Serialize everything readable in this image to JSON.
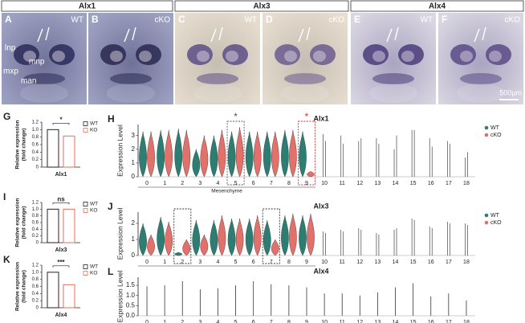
{
  "header": {
    "groups": [
      "Alx1",
      "Alx3",
      "Alx4"
    ]
  },
  "panels": [
    {
      "letter": "A",
      "genotype": "WT"
    },
    {
      "letter": "B",
      "genotype": "cKO"
    },
    {
      "letter": "C",
      "genotype": "WT"
    },
    {
      "letter": "D",
      "genotype": "cKO"
    },
    {
      "letter": "E",
      "genotype": "WT"
    },
    {
      "letter": "F",
      "genotype": "cKO"
    }
  ],
  "annotations": [
    "lnp",
    "mnp",
    "mxp",
    "man"
  ],
  "scale_bar": "500μm",
  "chart_data": [
    {
      "type": "bar",
      "letter": "G",
      "ylabel": [
        "Relative expression",
        "(fold change)"
      ],
      "categories": [
        "Alx1"
      ],
      "series": [
        {
          "name": "WT",
          "color": "#222222",
          "values": [
            1.0
          ]
        },
        {
          "name": "KO",
          "color": "#e0705a",
          "values": [
            0.83
          ]
        }
      ],
      "ylim": [
        0,
        1.2
      ],
      "yticks": [
        0,
        0.2,
        0.4,
        0.6,
        0.8,
        {
          "value": 1,
          "label": "1.0"
        },
        1.2
      ],
      "significance": "*"
    },
    {
      "type": "bar",
      "letter": "I",
      "ylabel": [
        "Relative expression",
        "(fold change)"
      ],
      "categories": [
        "Alx3"
      ],
      "series": [
        {
          "name": "WT",
          "color": "#222222",
          "values": [
            1.0
          ]
        },
        {
          "name": "KO",
          "color": "#e0705a",
          "values": [
            1.0
          ]
        }
      ],
      "ylim": [
        0,
        1.2
      ],
      "yticks": [
        0,
        0.2,
        0.4,
        0.6,
        0.8,
        {
          "value": 1,
          "label": "1.0"
        },
        1.2
      ],
      "significance": "ns"
    },
    {
      "type": "bar",
      "letter": "K",
      "ylabel": [
        "Relative expression",
        "(fold change)"
      ],
      "categories": [
        "Alx4"
      ],
      "series": [
        {
          "name": "WT",
          "color": "#222222",
          "values": [
            1.0
          ]
        },
        {
          "name": "KO",
          "color": "#e0705a",
          "values": [
            0.65
          ]
        }
      ],
      "ylim": [
        0,
        1.2
      ],
      "yticks": [
        0,
        0.2,
        0.4,
        0.6,
        0.8,
        {
          "value": 1,
          "label": "1.0"
        },
        1.2
      ],
      "significance": "***"
    },
    {
      "type": "violin",
      "letter": "H",
      "title": "Alx1",
      "ylabel": "Expression Level",
      "categories": [
        "0",
        "1",
        "2",
        "3",
        "4",
        "5",
        "6",
        "7",
        "8",
        "9",
        "10",
        "11",
        "12",
        "13",
        "14",
        "15",
        "16",
        "17",
        "18"
      ],
      "series": [
        {
          "name": "WT",
          "color": "#2e7d73",
          "values": [
            3.3,
            3.4,
            3.5,
            2.0,
            3.0,
            3.3,
            3.3,
            3.3,
            3.4,
            3.3,
            3.1,
            3.0,
            2.6,
            2.8,
            2.0,
            3.4,
            2.8,
            2.6,
            1.4
          ]
        },
        {
          "name": "cKO",
          "color": "#e2706b",
          "values": [
            3.3,
            3.4,
            3.4,
            3.0,
            3.4,
            3.6,
            3.3,
            3.3,
            3.4,
            0.4,
            2.6,
            2.4,
            2.8,
            2.4,
            3.0,
            3.4,
            2.2,
            2.4,
            1.8
          ]
        }
      ],
      "ylim": [
        0,
        3.8
      ],
      "yticks": [
        0,
        1,
        2,
        3
      ],
      "annotation": "Mesenchyme",
      "highlights": [
        {
          "category": 5,
          "label": "*",
          "color": "#555555"
        },
        {
          "category": 9,
          "label": "*",
          "color": "#e03030"
        }
      ]
    },
    {
      "type": "violin",
      "letter": "J",
      "title": "Alx3",
      "ylabel": "Expression Level",
      "categories": [
        "0",
        "1",
        "2",
        "3",
        "4",
        "5",
        "6",
        "7",
        "8",
        "9",
        "10",
        "11",
        "12",
        "13",
        "14",
        "15",
        "16",
        "17",
        "18"
      ],
      "series": [
        {
          "name": "WT",
          "color": "#2e7d73",
          "values": [
            2.0,
            2.4,
            0.2,
            2.2,
            2.2,
            2.3,
            2.3,
            2.2,
            2.5,
            2.5,
            1.5,
            1.6,
            1.7,
            1.4,
            1.6,
            2.3,
            1.8,
            2.1,
            2.0
          ]
        },
        {
          "name": "cKO",
          "color": "#e2706b",
          "values": [
            1.3,
            2.1,
            1.0,
            1.3,
            2.5,
            2.3,
            2.5,
            1.0,
            2.6,
            2.6,
            1.4,
            1.5,
            1.6,
            1.3,
            1.7,
            2.2,
            1.7,
            2.0,
            1.9
          ]
        }
      ],
      "ylim": [
        0,
        2.7
      ],
      "yticks": [
        0,
        1,
        2
      ],
      "highlights": [
        {
          "category": 2,
          "color": "#333333"
        },
        {
          "category": 7,
          "color": "#333333"
        }
      ]
    },
    {
      "type": "violin",
      "letter": "L",
      "title": "Alx4",
      "ylabel": "Expression Level",
      "categories": [
        "0",
        "1",
        "2",
        "3",
        "4",
        "5",
        "6",
        "7",
        "8",
        "9",
        "10",
        "11",
        "12",
        "13",
        "14",
        "15",
        "16",
        "17",
        "18"
      ],
      "values": [
        1.45,
        1.5,
        1.7,
        1.3,
        1.35,
        1.5,
        1.7,
        1.55,
        1.5,
        1.4,
        1.1,
        1.1,
        1.0,
        1.15,
        1.4,
        1.6,
        0.95,
        1.1,
        0.75
      ],
      "color": "#333333",
      "ylim": [
        0,
        1.9
      ],
      "yticks": [
        {
          "value": 0,
          "label": "0.0"
        },
        0.5,
        {
          "value": 1,
          "label": "1.0"
        },
        1.5
      ]
    }
  ]
}
